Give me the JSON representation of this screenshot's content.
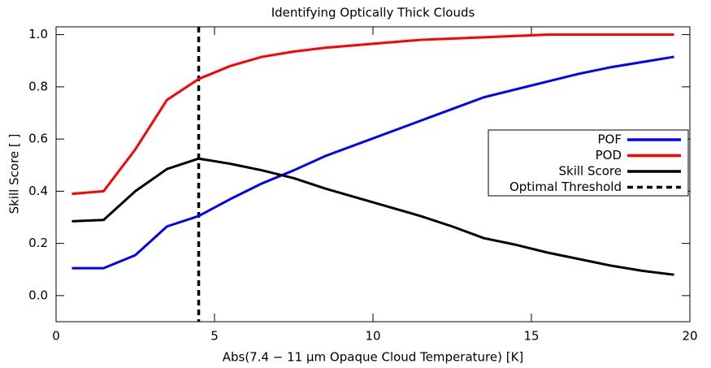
{
  "chart_data": {
    "type": "line",
    "title": "Identifying Optically Thick Clouds",
    "xlabel": "Abs(7.4 − 11 μm Opaque Cloud Temperature) [K]",
    "ylabel": "Skill Score [ ]",
    "x": [
      0.5,
      1.5,
      2.5,
      3.5,
      4.5,
      5.5,
      6.5,
      7.5,
      8.5,
      9.5,
      10.5,
      11.5,
      12.5,
      13.5,
      14.5,
      15.5,
      16.5,
      17.5,
      18.5,
      19.5
    ],
    "series": [
      {
        "name": "POF",
        "color": "#0000ff",
        "values": [
          0.105,
          0.105,
          0.155,
          0.265,
          0.305,
          0.37,
          0.43,
          0.48,
          0.535,
          0.58,
          0.625,
          0.67,
          0.715,
          0.76,
          0.79,
          0.82,
          0.85,
          0.875,
          0.895,
          0.915
        ]
      },
      {
        "name": "POD",
        "color": "#ff0000",
        "values": [
          0.39,
          0.4,
          0.56,
          0.75,
          0.83,
          0.88,
          0.915,
          0.935,
          0.95,
          0.96,
          0.97,
          0.98,
          0.985,
          0.99,
          0.995,
          1.0,
          1.0,
          1.0,
          1.0,
          1.0
        ]
      },
      {
        "name": "Skill Score",
        "color": "#000000",
        "values": [
          0.285,
          0.29,
          0.4,
          0.485,
          0.525,
          0.505,
          0.48,
          0.45,
          0.41,
          0.375,
          0.34,
          0.305,
          0.265,
          0.22,
          0.195,
          0.165,
          0.14,
          0.115,
          0.095,
          0.08
        ]
      }
    ],
    "threshold": {
      "name": "Optimal Threshold",
      "x": 4.5,
      "color": "#000000"
    },
    "xlim": [
      0,
      20
    ],
    "xticks": [
      0,
      5,
      10,
      15,
      20
    ],
    "ylim": [
      -0.1,
      1.03
    ],
    "yticks": [
      {
        "value": 0,
        "label": "0.0"
      },
      {
        "value": 0.2,
        "label": "0.2"
      },
      {
        "value": 0.4,
        "label": "0.4"
      },
      {
        "value": 0.6,
        "label": "0.6"
      },
      {
        "value": 0.8,
        "label": "0.8"
      },
      {
        "value": 1.0,
        "label": "1.0"
      }
    ],
    "legend": "right"
  }
}
